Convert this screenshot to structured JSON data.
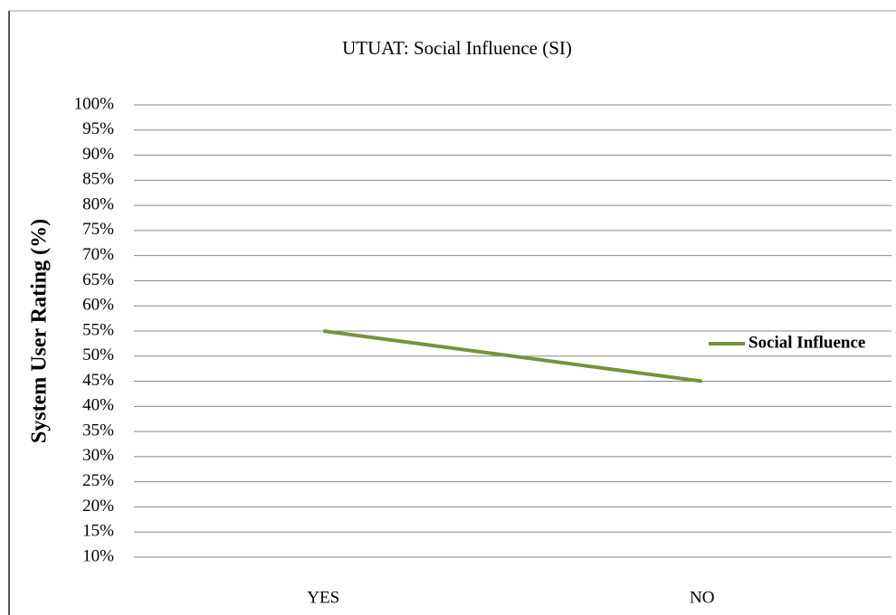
{
  "chart_data": {
    "type": "line",
    "title": "UTUAT: Social Influence (SI)",
    "y_label": "System User Rating (%)",
    "categories": [
      "YES",
      "NO"
    ],
    "series": [
      {
        "name": "Social Influence",
        "color": "#76933c",
        "values": [
          55,
          45
        ]
      }
    ],
    "ylim": [
      10,
      100
    ],
    "yticks": [
      {
        "value": 10,
        "label": "10%"
      },
      {
        "value": 15,
        "label": "15%"
      },
      {
        "value": 20,
        "label": "20%"
      },
      {
        "value": 25,
        "label": "25%"
      },
      {
        "value": 30,
        "label": "30%"
      },
      {
        "value": 35,
        "label": "35%"
      },
      {
        "value": 40,
        "label": "40%"
      },
      {
        "value": 45,
        "label": "45%"
      },
      {
        "value": 50,
        "label": "50%"
      },
      {
        "value": 55,
        "label": "55%"
      },
      {
        "value": 60,
        "label": "60%"
      },
      {
        "value": 65,
        "label": "65%"
      },
      {
        "value": 70,
        "label": "70%"
      },
      {
        "value": 75,
        "label": "75%"
      },
      {
        "value": 80,
        "label": "80%"
      },
      {
        "value": 85,
        "label": "85%"
      },
      {
        "value": 90,
        "label": "90%"
      },
      {
        "value": 95,
        "label": "95%"
      },
      {
        "value": 100,
        "label": "100%"
      }
    ],
    "grid": true,
    "legend": "right"
  }
}
